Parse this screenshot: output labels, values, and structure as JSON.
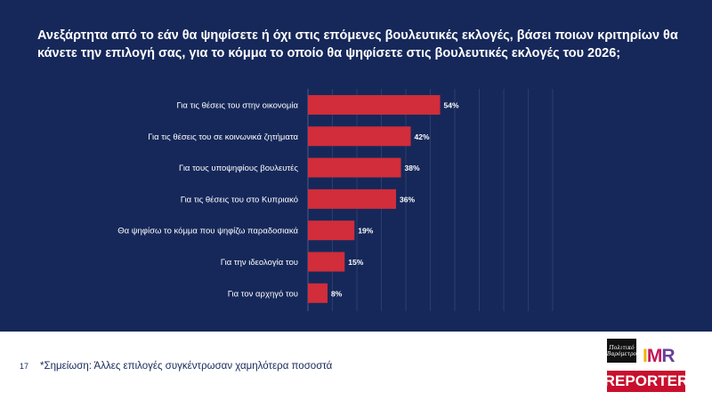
{
  "title": "Ανεξάρτητα από το εάν θα ψηφίσετε ή όχι στις επόμενες βουλευτικές εκλογές, βάσει ποιων κριτηρίων θα κάνετε την επιλογή σας, για το κόμμα το οποίο θα ψηφίσετε στις βουλευτικές εκλογές του 2026;",
  "chart_data": {
    "type": "bar",
    "orientation": "horizontal",
    "title": "Ανεξάρτητα από το εάν θα ψηφίσετε ή όχι στις επόμενες βουλευτικές εκλογές, βάσει ποιων κριτηρίων θα κάνετε την επιλογή σας, για το κόμμα το οποίο θα ψηφίσετε στις βουλευτικές εκλογές του 2026;",
    "categories": [
      "Για τις θέσεις του στην οικονομία",
      "Για τις θέσεις του σε κοινωνικά ζητήματα",
      "Για τους υποψηφίους βουλευτές",
      "Για τις θέσεις του στο Κυπριακό",
      "Θα ψηφίσω το κόμμα που ψηφίζω παραδοσιακά",
      "Για την ιδεολογία του",
      "Για τον αρχηγό του"
    ],
    "values": [
      54,
      42,
      38,
      36,
      19,
      15,
      8
    ],
    "value_labels": [
      "54%",
      "42%",
      "38%",
      "36%",
      "19%",
      "15%",
      "8%"
    ],
    "unit": "%",
    "xlim": [
      0,
      100
    ],
    "grid": true,
    "bar_color": "#d12d3a",
    "background_color": "#16285a"
  },
  "footer": {
    "page_number": "17",
    "note": "*Σημείωση: Άλλες επιλογές συγκέντρωσαν χαμηλότερα ποσοστά"
  },
  "logos": {
    "box_text": "Πολιτικό Βαρόμετρο",
    "imr_i": "I",
    "imr_m": "M",
    "imr_r": "R",
    "reporter": "REPORTER"
  },
  "colors": {
    "navy": "#16285a",
    "bar": "#d12d3a",
    "reporter_red": "#c8102e"
  }
}
